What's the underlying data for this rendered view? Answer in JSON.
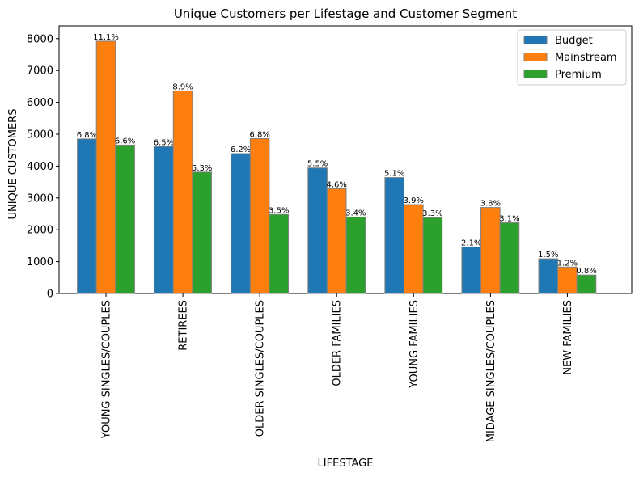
{
  "chart_data": {
    "type": "bar",
    "title": "Unique Customers per Lifestage and Customer Segment",
    "xlabel": "LIFESTAGE",
    "ylabel": "UNIQUE CUSTOMERS",
    "ylim": [
      0,
      8400
    ],
    "yticks": [
      "0",
      "1000",
      "2000",
      "3000",
      "4000",
      "5000",
      "6000",
      "7000",
      "8000"
    ],
    "ytick_values": [
      0,
      1000,
      2000,
      3000,
      4000,
      5000,
      6000,
      7000,
      8000
    ],
    "grid": false,
    "legend_position": "top-right",
    "categories": [
      "YOUNG SINGLES/COUPLES",
      "RETIREES",
      "OLDER SINGLES/COUPLES",
      "OLDER FAMILIES",
      "YOUNG FAMILIES",
      "MIDAGE SINGLES/COUPLES",
      "NEW FAMILIES"
    ],
    "series": [
      {
        "name": "Budget",
        "color": "#1f77b4",
        "values": [
          4850,
          4610,
          4390,
          3940,
          3640,
          1460,
          1090
        ],
        "labels": [
          "6.8%",
          "6.5%",
          "6.2%",
          "5.5%",
          "5.1%",
          "2.1%",
          "1.5%"
        ]
      },
      {
        "name": "Mainstream",
        "color": "#ff7f0e",
        "values": [
          7920,
          6360,
          4860,
          3290,
          2790,
          2700,
          830
        ],
        "labels": [
          "11.1%",
          "8.9%",
          "6.8%",
          "4.6%",
          "3.9%",
          "3.8%",
          "1.2%"
        ]
      },
      {
        "name": "Premium",
        "color": "#2ca02c",
        "values": [
          4660,
          3810,
          2480,
          2400,
          2380,
          2220,
          580
        ],
        "labels": [
          "6.6%",
          "5.3%",
          "3.5%",
          "3.4%",
          "3.3%",
          "3.1%",
          "0.8%"
        ]
      }
    ]
  }
}
